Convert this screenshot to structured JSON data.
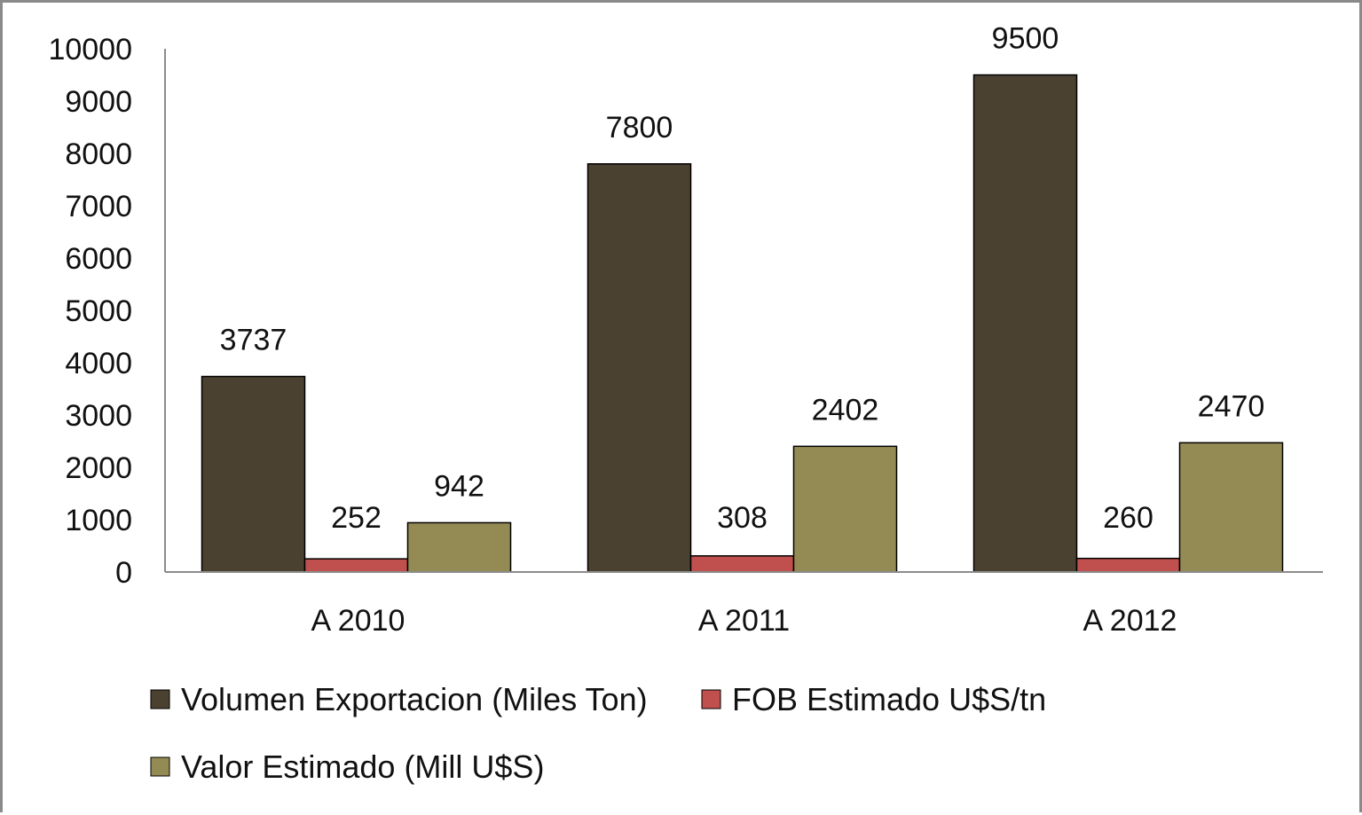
{
  "chart_data": {
    "type": "bar",
    "categories": [
      "A 2010",
      "A 2011",
      "A 2012"
    ],
    "series": [
      {
        "name": "Volumen Exportacion (Miles Ton)",
        "values": [
          3737,
          7800,
          9500
        ],
        "color": "#4a4130"
      },
      {
        "name": "FOB Estimado U$S/tn",
        "values": [
          252,
          308,
          260
        ],
        "color": "#c0504d"
      },
      {
        "name": "Valor Estimado (Mill U$S)",
        "values": [
          942,
          2402,
          2470
        ],
        "color": "#948a54"
      }
    ],
    "title": "",
    "xlabel": "",
    "ylabel": "",
    "ylim": [
      0,
      10000
    ],
    "yticks": [
      "0",
      "1000",
      "2000",
      "3000",
      "4000",
      "5000",
      "6000",
      "7000",
      "8000",
      "9000",
      "10000"
    ],
    "grid": false,
    "legend_position": "bottom"
  }
}
